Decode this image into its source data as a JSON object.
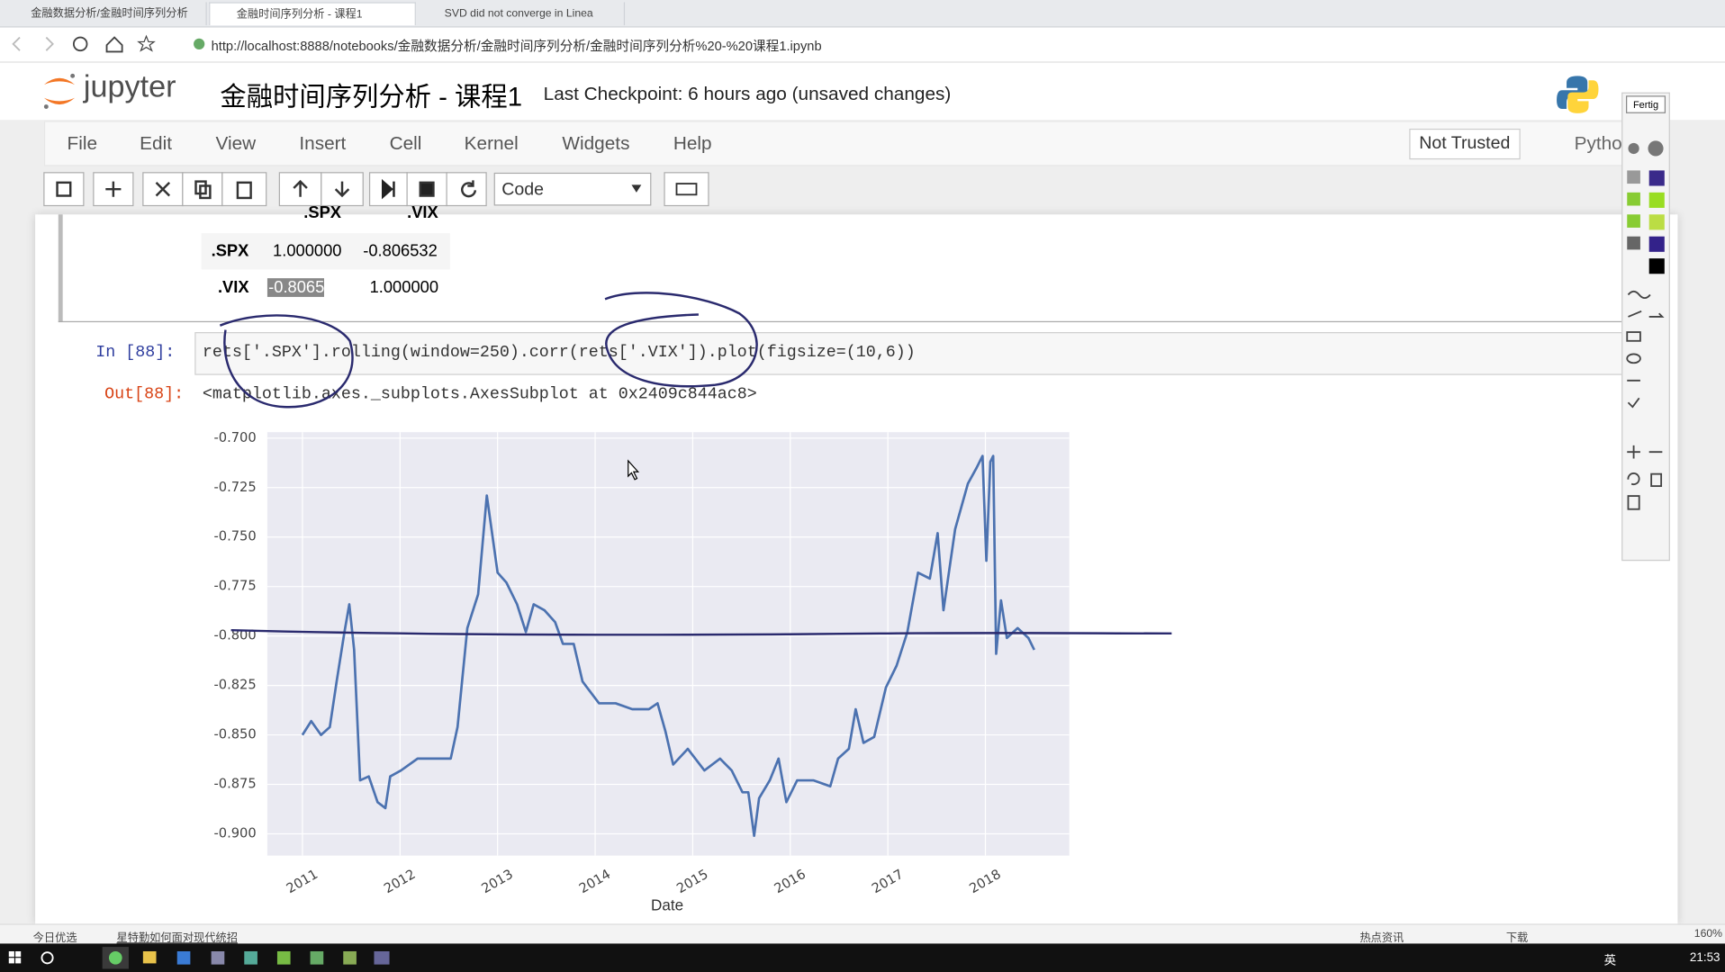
{
  "browser": {
    "tabs": [
      "金融数据分析/金融时间序列分析",
      "金融时间序列分析 - 课程1",
      "SVD did not converge in Linea"
    ],
    "url": "http://localhost:8888/notebooks/金融数据分析/金融时间序列分析/金融时间序列分析%20-%20课程1.ipynb"
  },
  "notebook": {
    "logo": "jupyter",
    "title": "金融时间序列分析 - 课程1",
    "checkpoint": "Last Checkpoint: 6 hours ago (unsaved changes)",
    "menu": [
      "File",
      "Edit",
      "View",
      "Insert",
      "Cell",
      "Kernel",
      "Widgets",
      "Help"
    ],
    "trusted": "Not Trusted",
    "kernel": "Pytho",
    "cell_type": "Code",
    "pen_panel": "Fertig"
  },
  "table": {
    "header": [
      ".SPX",
      ".VIX"
    ],
    "rows": [
      [
        ".SPX",
        "1.000000",
        "-0.806532"
      ],
      [
        ".VIX",
        "-0.806532",
        "1.000000"
      ]
    ]
  },
  "cells": {
    "in_prompt": "In  [88]:",
    "code": "rets['.SPX'].rolling(window=250).corr(rets['.VIX']).plot(figsize=(10,6))",
    "out_prompt": "Out[88]:",
    "output": "<matplotlib.axes._subplots.AxesSubplot at 0x2409c844ac8>"
  },
  "status": {
    "left": "今日优选",
    "news": "星特勤如何面对现代统招",
    "hot": "热点资讯",
    "download": "下载",
    "zoom": "160%"
  },
  "taskbar": {
    "lang": "英",
    "time": "21:53"
  },
  "chart_data": {
    "type": "line",
    "xlabel": "Date",
    "x": [
      2011.0,
      2011.09,
      2011.19,
      2011.28,
      2011.35,
      2011.43,
      2011.48,
      2011.53,
      2011.59,
      2011.68,
      2011.77,
      2011.85,
      2011.9,
      2012.01,
      2012.18,
      2012.35,
      2012.52,
      2012.59,
      2012.69,
      2012.8,
      2012.89,
      2013.0,
      2013.09,
      2013.2,
      2013.29,
      2013.37,
      2013.48,
      2013.59,
      2013.67,
      2013.78,
      2013.87,
      2014.04,
      2014.21,
      2014.38,
      2014.55,
      2014.64,
      2014.72,
      2014.8,
      2014.95,
      2015.12,
      2015.28,
      2015.4,
      2015.51,
      2015.57,
      2015.63,
      2015.68,
      2015.79,
      2015.88,
      2015.96,
      2016.07,
      2016.24,
      2016.41,
      2016.49,
      2016.6,
      2016.67,
      2016.75,
      2016.86,
      2016.98,
      2017.09,
      2017.2,
      2017.31,
      2017.43,
      2017.51,
      2017.57,
      2017.69,
      2017.82,
      2017.91,
      2017.97,
      2018.01,
      2018.05,
      2018.08,
      2018.11,
      2018.16,
      2018.22,
      2018.33,
      2018.44,
      2018.5
    ],
    "values": [
      -0.85,
      -0.843,
      -0.85,
      -0.846,
      -0.823,
      -0.798,
      -0.784,
      -0.807,
      -0.873,
      -0.871,
      -0.884,
      -0.887,
      -0.871,
      -0.868,
      -0.862,
      -0.862,
      -0.862,
      -0.846,
      -0.796,
      -0.779,
      -0.729,
      -0.768,
      -0.773,
      -0.784,
      -0.798,
      -0.784,
      -0.787,
      -0.793,
      -0.804,
      -0.804,
      -0.823,
      -0.834,
      -0.834,
      -0.837,
      -0.837,
      -0.834,
      -0.848,
      -0.865,
      -0.857,
      -0.868,
      -0.862,
      -0.868,
      -0.879,
      -0.879,
      -0.901,
      -0.882,
      -0.873,
      -0.862,
      -0.884,
      -0.873,
      -0.873,
      -0.876,
      -0.862,
      -0.857,
      -0.837,
      -0.854,
      -0.851,
      -0.826,
      -0.815,
      -0.798,
      -0.768,
      -0.771,
      -0.748,
      -0.787,
      -0.746,
      -0.723,
      -0.715,
      -0.709,
      -0.762,
      -0.712,
      -0.709,
      -0.809,
      -0.782,
      -0.801,
      -0.796,
      -0.801,
      -0.807
    ],
    "color": "#4c72b0",
    "grid": true,
    "xlim": [
      2010.64,
      2018.86
    ],
    "xticks": [
      2011,
      2012,
      2013,
      2014,
      2015,
      2016,
      2017,
      2018
    ],
    "ylim": [
      -0.911,
      -0.697
    ],
    "yticks": [
      {
        "value": -0.7,
        "label": "-0.700"
      },
      -0.725,
      {
        "value": -0.75,
        "label": "-0.750"
      },
      -0.775,
      {
        "value": -0.8,
        "label": "-0.800"
      },
      -0.825,
      {
        "value": -0.85,
        "label": "-0.850"
      },
      -0.875,
      {
        "value": -0.9,
        "label": "-0.900"
      }
    ]
  }
}
